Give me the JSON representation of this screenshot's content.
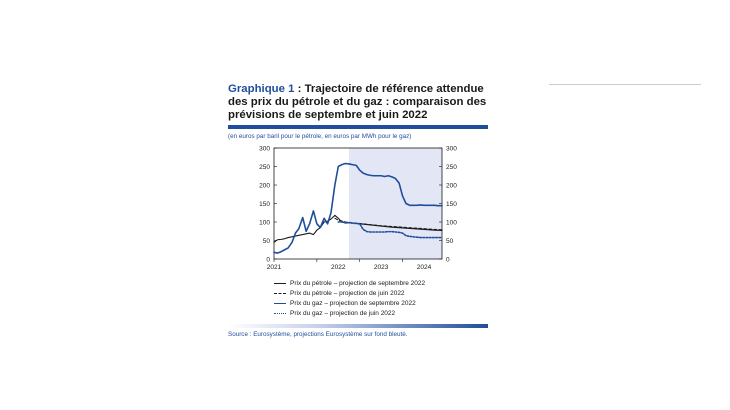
{
  "figure": {
    "label": "Graphique 1",
    "title_rest": " : Trajectoire de référence attendue des prix du pétrole et du gaz : comparaison des prévisions de septembre et juin 2022",
    "units": "(en euros par baril pour le pétrole, en euros par MWh pour le gaz)",
    "source": "Source : Eurosystème, projections Eurosystème sur fond bleuté."
  },
  "colors": {
    "oil": "#1a1a1a",
    "gas": "#1f4e9c",
    "projection_shade": "#e3e6f4",
    "accent": "#1f4e9c"
  },
  "chart_data": {
    "type": "line",
    "xlim": [
      2021.0,
      2024.92
    ],
    "ylim": [
      0,
      300
    ],
    "yticks": [
      0,
      50,
      100,
      150,
      200,
      250,
      300
    ],
    "xticks": [
      {
        "value": 2021.0,
        "label": "2021"
      },
      {
        "value": 2022.0,
        "label": "2022"
      },
      {
        "value": 2023.0,
        "label": "2023"
      },
      {
        "value": 2024.0,
        "label": "2024"
      }
    ],
    "projection_start": 2022.75,
    "grid": false,
    "legend_position": "bottom",
    "series": [
      {
        "name": "Prix du pétrole – projection de septembre 2022",
        "color": "#1a1a1a",
        "dash": "solid",
        "width": 1.1,
        "x": [
          2021.0,
          2021.08,
          2021.17,
          2021.25,
          2021.33,
          2021.42,
          2021.5,
          2021.58,
          2021.67,
          2021.75,
          2021.83,
          2021.92,
          2022.0,
          2022.08,
          2022.17,
          2022.25,
          2022.33,
          2022.42,
          2022.5,
          2022.58,
          2022.67,
          2022.75,
          2023.0,
          2023.25,
          2023.5,
          2023.75,
          2024.0,
          2024.25,
          2024.5,
          2024.75,
          2024.92
        ],
        "y": [
          45,
          52,
          53,
          55,
          58,
          60,
          62,
          64,
          66,
          68,
          70,
          66,
          78,
          85,
          100,
          102,
          108,
          118,
          110,
          100,
          97,
          98,
          95,
          92,
          89,
          86,
          84,
          82,
          80,
          78,
          77
        ]
      },
      {
        "name": "Prix du pétrole – projection de juin 2022",
        "color": "#1a1a1a",
        "dash": "dashed",
        "width": 1.0,
        "x": [
          2022.42,
          2022.5,
          2022.67,
          2022.75,
          2023.0,
          2023.25,
          2023.5,
          2023.75,
          2024.0,
          2024.25,
          2024.5,
          2024.75,
          2024.92
        ],
        "y": [
          110,
          105,
          100,
          99,
          96,
          93,
          90,
          88,
          86,
          84,
          82,
          80,
          79
        ]
      },
      {
        "name": "Prix du gaz – projection de septembre 2022",
        "color": "#1f4e9c",
        "dash": "solid",
        "width": 1.6,
        "x": [
          2021.0,
          2021.08,
          2021.17,
          2021.25,
          2021.33,
          2021.42,
          2021.5,
          2021.58,
          2021.67,
          2021.75,
          2021.83,
          2021.92,
          2022.0,
          2022.08,
          2022.17,
          2022.25,
          2022.33,
          2022.42,
          2022.5,
          2022.58,
          2022.67,
          2022.75,
          2022.83,
          2022.92,
          2023.0,
          2023.08,
          2023.17,
          2023.25,
          2023.33,
          2023.42,
          2023.5,
          2023.58,
          2023.67,
          2023.75,
          2023.83,
          2023.92,
          2024.0,
          2024.08,
          2024.17,
          2024.25,
          2024.33,
          2024.42,
          2024.5,
          2024.58,
          2024.67,
          2024.75,
          2024.83,
          2024.92
        ],
        "y": [
          18,
          16,
          20,
          25,
          30,
          45,
          70,
          82,
          112,
          75,
          95,
          130,
          95,
          85,
          110,
          95,
          125,
          200,
          250,
          255,
          258,
          257,
          255,
          253,
          240,
          232,
          228,
          226,
          225,
          225,
          225,
          223,
          225,
          222,
          218,
          205,
          170,
          150,
          145,
          145,
          145,
          146,
          145,
          145,
          145,
          145,
          144,
          144
        ]
      },
      {
        "name": "Prix du gaz – projection de juin 2022",
        "color": "#1f4e9c",
        "dash": "dotted",
        "width": 1.6,
        "x": [
          2022.5,
          2022.58,
          2022.67,
          2022.75,
          2022.83,
          2022.92,
          2023.0,
          2023.08,
          2023.17,
          2023.25,
          2023.33,
          2023.42,
          2023.5,
          2023.58,
          2023.67,
          2023.75,
          2023.83,
          2023.92,
          2024.0,
          2024.08,
          2024.17,
          2024.25,
          2024.33,
          2024.42,
          2024.5,
          2024.58,
          2024.67,
          2024.75,
          2024.83,
          2024.92
        ],
        "y": [
          100,
          100,
          99,
          98,
          97,
          96,
          95,
          80,
          74,
          73,
          73,
          73,
          73,
          73,
          74,
          74,
          73,
          72,
          70,
          63,
          61,
          60,
          59,
          58,
          58,
          58,
          58,
          58,
          58,
          58
        ]
      }
    ]
  }
}
